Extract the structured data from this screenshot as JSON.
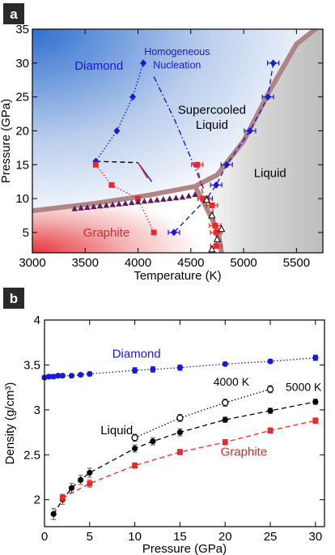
{
  "chart_data": [
    {
      "panel_label": "a",
      "type": "scatter",
      "title": "",
      "xlabel": "Temperature (K)",
      "ylabel": "Pressure (GPa)",
      "xlim": [
        3000,
        5750
      ],
      "ylim": [
        2,
        35
      ],
      "xticks": [
        3000,
        3500,
        4000,
        4500,
        5000,
        5500
      ],
      "yticks": [
        5,
        10,
        15,
        20,
        25,
        30,
        35
      ],
      "background_colors": {
        "diamond": "#2f6fd0",
        "graphite": "#e8333a",
        "liquid": "#bdbdbd"
      },
      "region_labels": [
        {
          "text": "Diamond",
          "x": 3400,
          "y": 29,
          "color": "#1a1ad6"
        },
        {
          "text": "Homogeneous",
          "x": 4370,
          "y": 31.2,
          "color": "#1a1ad6"
        },
        {
          "text": "Nucleation",
          "x": 4370,
          "y": 29.2,
          "color": "#1a1ad6"
        },
        {
          "text": "Supercooled",
          "x": 4700,
          "y": 22.5,
          "color": "#000000"
        },
        {
          "text": "Liquid",
          "x": 4700,
          "y": 20.3,
          "color": "#000000"
        },
        {
          "text": "Liquid",
          "x": 5250,
          "y": 13.2,
          "color": "#000000"
        },
        {
          "text": "Graphite",
          "x": 3480,
          "y": 4.4,
          "color": "#d62a2a"
        }
      ],
      "phase_boundaries": [
        {
          "name": "graphite-diamond",
          "color": "#b08585",
          "points": [
            [
              3000,
              8.2
            ],
            [
              3600,
              9.3
            ],
            [
              4100,
              10.5
            ],
            [
              4540,
              11.8
            ]
          ]
        },
        {
          "name": "graphite-liquid",
          "color": "#b08585",
          "points": [
            [
              4540,
              11.8
            ],
            [
              4620,
              9.5
            ],
            [
              4700,
              7.0
            ],
            [
              4760,
              5.0
            ],
            [
              4790,
              2
            ]
          ]
        },
        {
          "name": "diamond-liquid",
          "color": "#b08585",
          "points": [
            [
              4540,
              11.8
            ],
            [
              4750,
              13.5
            ],
            [
              5000,
              18.5
            ],
            [
              5250,
              26.0
            ],
            [
              5500,
              32.8
            ],
            [
              5680,
              35
            ]
          ]
        }
      ],
      "series": [
        {
          "style": "diamond-markers",
          "color": "#1a1ad6",
          "points": [
            [
              4050,
              30
            ],
            [
              3950,
              25
            ],
            [
              3800,
              20
            ],
            [
              3600,
              15.5
            ]
          ]
        },
        {
          "style": "square-markers",
          "color": "#e62a2a",
          "points": [
            [
              3600,
              15
            ],
            [
              3750,
              12
            ],
            [
              4000,
              10
            ],
            [
              4150,
              5
            ]
          ]
        },
        {
          "style": "triangle-markers",
          "color": "#5a1f5a",
          "points": [
            [
              3400,
              8.5
            ],
            [
              3460,
              8.6
            ],
            [
              3520,
              8.7
            ],
            [
              3580,
              8.8
            ],
            [
              3640,
              8.9
            ],
            [
              3700,
              9.0
            ],
            [
              3760,
              9.1
            ],
            [
              3820,
              9.2
            ],
            [
              3880,
              9.3
            ],
            [
              3940,
              9.4
            ],
            [
              4000,
              9.5
            ],
            [
              4060,
              9.6
            ],
            [
              4120,
              9.7
            ],
            [
              4180,
              9.8
            ],
            [
              4240,
              9.9
            ],
            [
              4300,
              10.0
            ],
            [
              4360,
              10.1
            ],
            [
              4420,
              10.2
            ],
            [
              4480,
              10.4
            ],
            [
              4540,
              10.6
            ]
          ]
        },
        {
          "style": "diamond-markers-errorbar",
          "color": "#1a1ad6",
          "points": [
            [
              5280,
              30
            ],
            [
              5230,
              25
            ],
            [
              5060,
              20
            ],
            [
              4840,
              15
            ],
            [
              4740,
              12
            ],
            [
              4650,
              10
            ],
            [
              4340,
              5
            ]
          ]
        },
        {
          "style": "square-markers-errorbar",
          "color": "#e62a2a",
          "points": [
            [
              4560,
              15
            ],
            [
              4620,
              10
            ],
            [
              4700,
              9
            ],
            [
              4730,
              6
            ],
            [
              4740,
              5
            ],
            [
              4740,
              3
            ]
          ]
        },
        {
          "style": "open-triangle-markers",
          "color": "#000000",
          "points": [
            [
              4650,
              9.8
            ],
            [
              4700,
              7.5
            ],
            [
              4790,
              5.5
            ],
            [
              4750,
              4
            ],
            [
              4700,
              2.5
            ]
          ]
        }
      ],
      "guide_lines": [
        {
          "style": "dashed",
          "color": "#000000",
          "points": [
            [
              3600,
              15.5
            ],
            [
              4000,
              15.3
            ]
          ]
        },
        {
          "style": "solid",
          "color": "#1a1ad6",
          "points": [
            [
              4000,
              15.3
            ],
            [
              4130,
              12.5
            ]
          ]
        },
        {
          "style": "solid",
          "color": "#e62a2a",
          "points": [
            [
              4000,
              15.3
            ],
            [
              4090,
              13.0
            ]
          ]
        },
        {
          "style": "dashdot",
          "color": "#1a1ad6",
          "points": [
            [
              4150,
              28.0
            ],
            [
              4350,
              21.5
            ],
            [
              4500,
              16.0
            ],
            [
              4620,
              11.5
            ]
          ]
        },
        {
          "style": "dotted",
          "color": "#1a1ad6",
          "points": [
            [
              4050,
              30
            ],
            [
              3950,
              25
            ],
            [
              3800,
              20
            ],
            [
              3600,
              15.5
            ]
          ]
        },
        {
          "style": "dotted",
          "color": "#e62a2a",
          "points": [
            [
              3600,
              15
            ],
            [
              3750,
              12
            ],
            [
              4000,
              10
            ],
            [
              4150,
              5
            ]
          ]
        },
        {
          "style": "dashed",
          "color": "#1a1ad6",
          "points": [
            [
              5280,
              30
            ],
            [
              5230,
              25
            ],
            [
              5060,
              20
            ],
            [
              4840,
              15
            ],
            [
              4740,
              12
            ],
            [
              4650,
              10
            ],
            [
              4340,
              5
            ]
          ]
        },
        {
          "style": "dashed",
          "color": "#e62a2a",
          "points": [
            [
              4560,
              15
            ],
            [
              4620,
              10
            ],
            [
              4700,
              9
            ],
            [
              4730,
              6
            ],
            [
              4740,
              5
            ],
            [
              4740,
              3
            ]
          ]
        }
      ]
    },
    {
      "panel_label": "b",
      "type": "line",
      "title": "",
      "xlabel": "Pressure (GPa)",
      "ylabel": "Density (g/cm³)",
      "xlim": [
        0,
        31
      ],
      "ylim": [
        1.7,
        4.0
      ],
      "xticks": [
        0,
        5,
        10,
        15,
        20,
        25,
        30
      ],
      "yticks": [
        2,
        2.5,
        3,
        3.5,
        4
      ],
      "annotations": [
        {
          "text": "Diamond",
          "x": 7.5,
          "y": 3.58,
          "color": "#1a1ad6"
        },
        {
          "text": "4000 K",
          "x": 18.7,
          "y": 3.27,
          "color": "#000000"
        },
        {
          "text": "5000 K",
          "x": 26.7,
          "y": 3.21,
          "color": "#000000"
        },
        {
          "text": "Liquid",
          "x": 6.2,
          "y": 2.73,
          "color": "#000000"
        },
        {
          "text": "Graphite",
          "x": 19.5,
          "y": 2.49,
          "color": "#d62a2a"
        }
      ],
      "series": [
        {
          "name": "Diamond",
          "color": "#1a1ad6",
          "marker": "filled",
          "line": "dotted",
          "x": [
            0,
            0.5,
            1,
            1.5,
            2,
            3,
            4,
            5,
            10,
            12,
            15,
            20,
            25,
            30
          ],
          "y": [
            3.36,
            3.37,
            3.37,
            3.38,
            3.38,
            3.38,
            3.39,
            3.4,
            3.44,
            3.45,
            3.47,
            3.51,
            3.54,
            3.58
          ],
          "err": [
            0.02,
            0.02,
            0.02,
            0.02,
            0.02,
            0.02,
            0.02,
            0.02,
            0.03,
            0.03,
            0.03,
            0.02,
            0.02,
            0.03
          ]
        },
        {
          "name": "4000 K",
          "color": "#000000",
          "marker": "open",
          "line": "dotted",
          "x": [
            10,
            15,
            20,
            25
          ],
          "y": [
            2.69,
            2.91,
            3.08,
            3.23
          ],
          "err": [
            0.04,
            0.04,
            0.04,
            0.04
          ]
        },
        {
          "name": "5000 K",
          "color": "#000000",
          "marker": "filled",
          "line": "dashed",
          "x": [
            1,
            2,
            3,
            4,
            5,
            10,
            12,
            15,
            20,
            25,
            30
          ],
          "y": [
            1.84,
            2.0,
            2.13,
            2.22,
            2.3,
            2.57,
            2.65,
            2.75,
            2.89,
            2.99,
            3.09
          ],
          "err": [
            0.06,
            0.05,
            0.05,
            0.05,
            0.05,
            0.04,
            0.04,
            0.04,
            0.03,
            0.03,
            0.03
          ]
        },
        {
          "name": "Graphite",
          "color": "#e62a2a",
          "marker": "filled-square",
          "line": "dashed",
          "x": [
            2,
            5,
            10,
            15,
            20,
            25,
            30
          ],
          "y": [
            2.02,
            2.18,
            2.38,
            2.53,
            2.64,
            2.77,
            2.88
          ],
          "err": [
            0.04,
            0.04,
            0.03,
            0.03,
            0.03,
            0.03,
            0.03
          ]
        }
      ]
    }
  ]
}
